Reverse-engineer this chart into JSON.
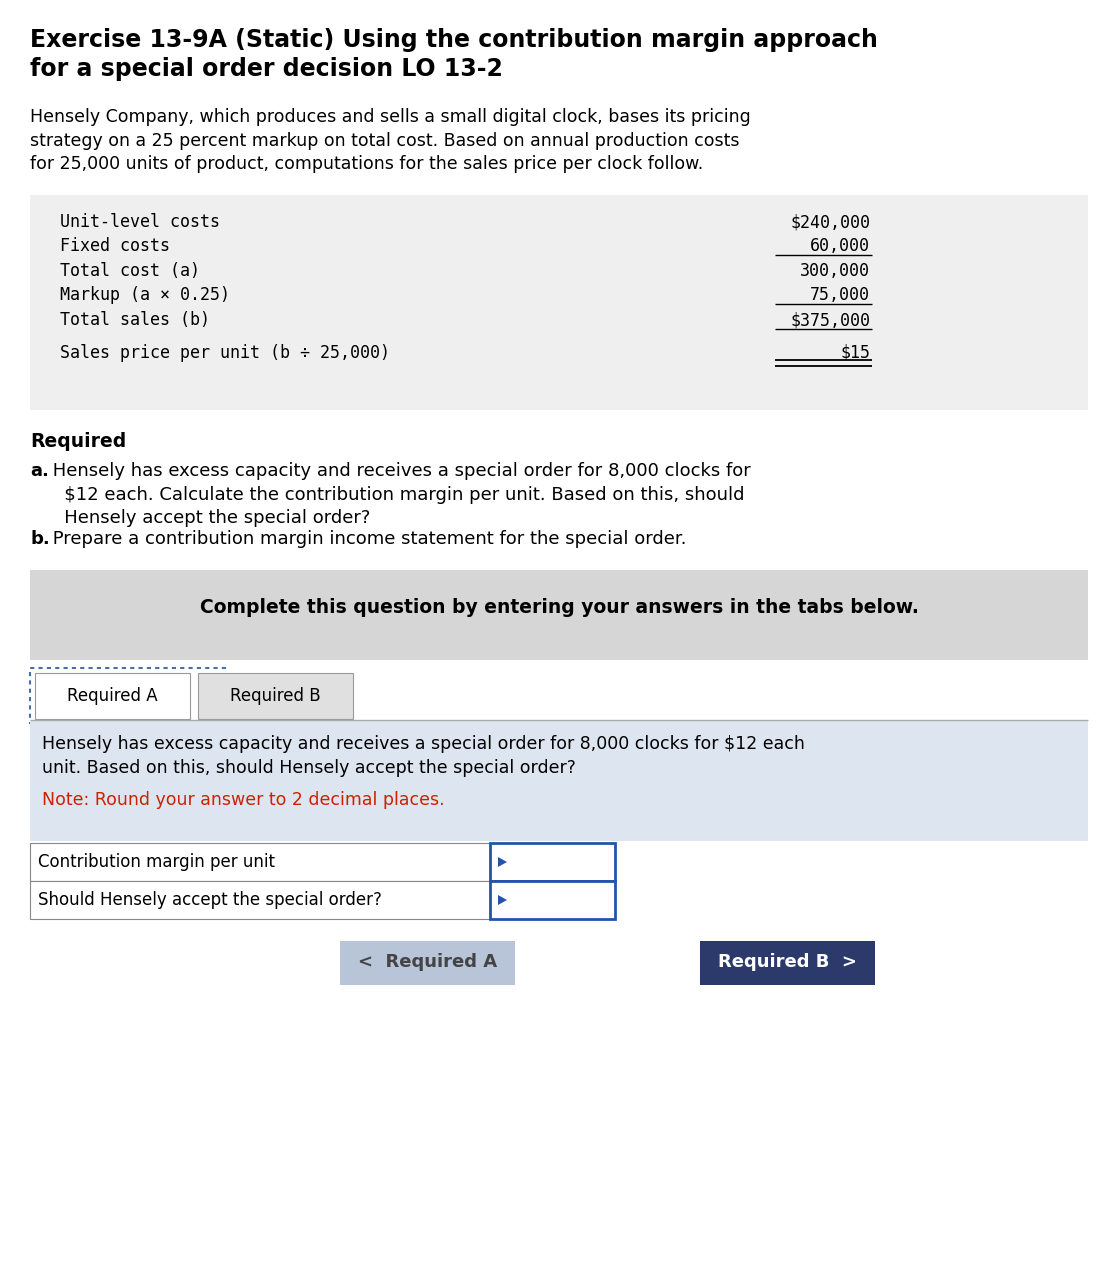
{
  "title_line1": "Exercise 13-9A (Static) Using the contribution margin approach",
  "title_line2": "for a special order decision LO 13-2",
  "intro_text": "Hensely Company, which produces and sells a small digital clock, bases its pricing\nstrategy on a 25 percent markup on total cost. Based on annual production costs\nfor 25,000 units of product, computations for the sales price per clock follow.",
  "table_rows": [
    {
      "label": "Unit-level costs",
      "value": "$240,000",
      "pre_underline": false,
      "post_underline": false,
      "double_underline": false
    },
    {
      "label": "Fixed costs",
      "value": "60,000",
      "pre_underline": false,
      "post_underline": true,
      "double_underline": false
    },
    {
      "label": "Total cost (a)",
      "value": "300,000",
      "pre_underline": false,
      "post_underline": false,
      "double_underline": false
    },
    {
      "label": "Markup (a × 0.25)",
      "value": "75,000",
      "pre_underline": false,
      "post_underline": true,
      "double_underline": false
    },
    {
      "label": "Total sales (b)",
      "value": "$375,000",
      "pre_underline": false,
      "post_underline": true,
      "double_underline": false
    },
    {
      "label": "Sales price per unit (b ÷ 25,000)",
      "value": "$15",
      "pre_underline": false,
      "post_underline": false,
      "double_underline": true
    }
  ],
  "required_label": "Required",
  "req_a_bold": "a.",
  "req_a_rest": " Hensely has excess capacity and receives a special order for 8,000 clocks for\n   $12 each. Calculate the contribution margin per unit. Based on this, should\n   Hensely accept the special order?",
  "req_b_bold": "b.",
  "req_b_rest": " Prepare a contribution margin income statement for the special order.",
  "complete_box_text": "Complete this question by entering your answers in the tabs below.",
  "tab1_label": "Required A",
  "tab2_label": "Required B",
  "content_text": "Hensely has excess capacity and receives a special order for 8,000 clocks for $12 each\nunit. Based on this, should Hensely accept the special order?",
  "note_text": "Note: Round your answer to 2 decimal places.",
  "row1_label": "Contribution margin per unit",
  "row2_label": "Should Hensely accept the special order?",
  "btn1_label": "<  Required A",
  "btn2_label": "Required B  >",
  "bg_color": "#ffffff",
  "table_bg": "#efefef",
  "complete_box_bg": "#d6d6d6",
  "tab_content_bg": "#dce5f0",
  "btn1_bg": "#b8c4d8",
  "btn2_bg": "#2b3a6b",
  "note_color": "#cc2200",
  "tab_dotted_color": "#4a6fa5",
  "mono_font": "DejaVu Sans Mono",
  "sans_font": "DejaVu Sans"
}
